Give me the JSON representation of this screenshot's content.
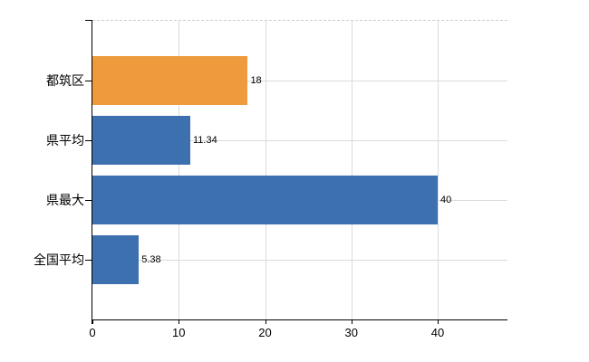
{
  "chart_data": {
    "type": "bar",
    "orientation": "horizontal",
    "title": "",
    "xlabel": "",
    "ylabel": "",
    "categories": [
      "都筑区",
      "県平均",
      "県最大",
      "全国平均"
    ],
    "values": [
      18,
      11.34,
      40,
      5.38
    ],
    "value_labels": [
      "18",
      "11.34",
      "40",
      "5.38"
    ],
    "bar_colors": [
      "#ED9B3D",
      "#3D70AE",
      "#3D70AE",
      "#3D70AE"
    ],
    "x_ticks": [
      0,
      10,
      20,
      30,
      40
    ],
    "x_tick_labels": [
      "0",
      "10",
      "20",
      "30",
      "40"
    ],
    "xlim": [
      0,
      48.1
    ],
    "grid": true,
    "legend": false,
    "annotations": []
  },
  "colors": {
    "bar_orange": "#ED9B3D",
    "bar_blue": "#3D70AE",
    "gridline": "#D9D9D9",
    "top_border": "#CDCDCD",
    "axis": "#000000",
    "text": "#000000",
    "background": "#FFFFFF"
  }
}
